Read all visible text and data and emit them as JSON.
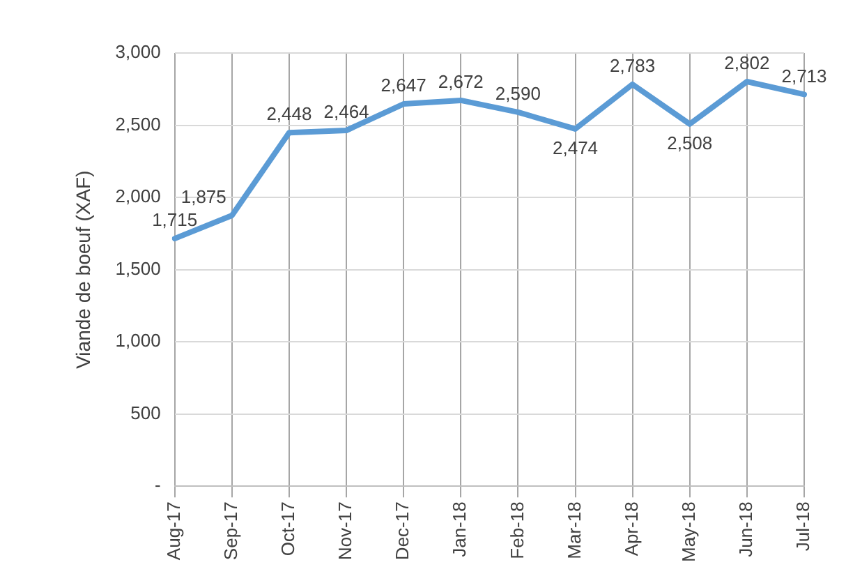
{
  "chart_data": {
    "type": "line",
    "ylabel": "Viande de boeuf (XAF)",
    "categories": [
      "Aug-17",
      "Sep-17",
      "Oct-17",
      "Nov-17",
      "Dec-17",
      "Jan-18",
      "Feb-18",
      "Mar-18",
      "Apr-18",
      "May-18",
      "Jun-18",
      "Jul-18"
    ],
    "series": [
      {
        "color": "#5b9bd5",
        "values": [
          1715,
          1875,
          2448,
          2464,
          2647,
          2672,
          2590,
          2474,
          2783,
          2508,
          2802,
          2713
        ],
        "value_labels": [
          "1,715",
          "1,875",
          "2,448",
          "2,464",
          "2,647",
          "2,672",
          "2,590",
          "2,474",
          "2,783",
          "2,508",
          "2,802",
          "2,713"
        ]
      }
    ],
    "ylim": [
      0,
      3000
    ],
    "yticks": [
      {
        "value": 0,
        "label": "-"
      },
      500,
      {
        "value": 1000,
        "label": "1,000"
      },
      {
        "value": 1500,
        "label": "1,500"
      },
      {
        "value": 2000,
        "label": "2,000"
      },
      {
        "value": 2500,
        "label": "2,500"
      },
      {
        "value": 3000,
        "label": "3,000"
      }
    ],
    "grid": true,
    "legend": false,
    "marker": "none",
    "line_style": "solid"
  }
}
